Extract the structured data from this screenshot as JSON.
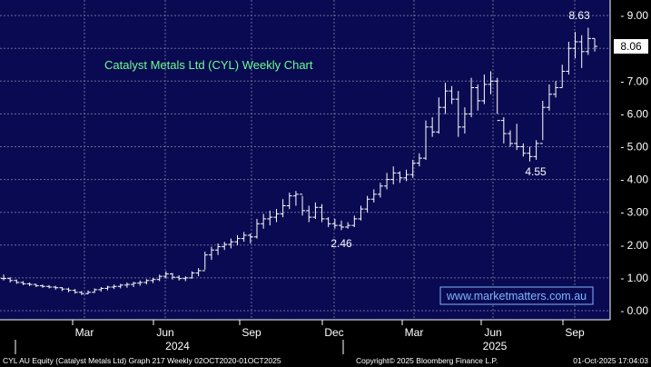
{
  "chart_data": {
    "type": "ohlc",
    "title": "Catalyst Metals Ltd (CYL) Weekly Chart",
    "watermark": "www.marketmatters.com.au",
    "ylim": [
      -0.2,
      9.3
    ],
    "y_ticks": [
      "0.00",
      "1.00",
      "2.00",
      "3.00",
      "4.00",
      "5.00",
      "6.00",
      "7.00",
      "8.00",
      "9.00"
    ],
    "x_ticks": [
      "Mar",
      "Jun",
      "Sep",
      "Dec",
      "Mar",
      "Jun",
      "Sep"
    ],
    "years": [
      "2024",
      "2025"
    ],
    "last_price": "8.06",
    "annotations": [
      "8.63",
      "2.46",
      "4.55"
    ],
    "bars": [
      {
        "h": 1.1,
        "l": 0.92,
        "c": 0.98
      },
      {
        "h": 1.02,
        "l": 0.86,
        "c": 0.92
      },
      {
        "h": 0.95,
        "l": 0.82,
        "c": 0.86
      },
      {
        "h": 0.9,
        "l": 0.78,
        "c": 0.82
      },
      {
        "h": 0.86,
        "l": 0.75,
        "c": 0.8
      },
      {
        "h": 0.82,
        "l": 0.72,
        "c": 0.76
      },
      {
        "h": 0.8,
        "l": 0.7,
        "c": 0.74
      },
      {
        "h": 0.78,
        "l": 0.68,
        "c": 0.72
      },
      {
        "h": 0.76,
        "l": 0.64,
        "c": 0.7
      },
      {
        "h": 0.72,
        "l": 0.6,
        "c": 0.66
      },
      {
        "h": 0.7,
        "l": 0.56,
        "c": 0.62
      },
      {
        "h": 0.66,
        "l": 0.52,
        "c": 0.56
      },
      {
        "h": 0.6,
        "l": 0.48,
        "c": 0.52
      },
      {
        "h": 0.62,
        "l": 0.5,
        "c": 0.56
      },
      {
        "h": 0.68,
        "l": 0.54,
        "c": 0.64
      },
      {
        "h": 0.72,
        "l": 0.58,
        "c": 0.68
      },
      {
        "h": 0.76,
        "l": 0.62,
        "c": 0.72
      },
      {
        "h": 0.8,
        "l": 0.66,
        "c": 0.74
      },
      {
        "h": 0.82,
        "l": 0.68,
        "c": 0.78
      },
      {
        "h": 0.86,
        "l": 0.7,
        "c": 0.8
      },
      {
        "h": 0.88,
        "l": 0.72,
        "c": 0.84
      },
      {
        "h": 0.92,
        "l": 0.76,
        "c": 0.86
      },
      {
        "h": 0.96,
        "l": 0.8,
        "c": 0.92
      },
      {
        "h": 1.0,
        "l": 0.84,
        "c": 0.95
      },
      {
        "h": 1.1,
        "l": 0.9,
        "c": 1.05
      },
      {
        "h": 1.2,
        "l": 0.98,
        "c": 1.12
      },
      {
        "h": 1.15,
        "l": 0.95,
        "c": 1.02
      },
      {
        "h": 1.08,
        "l": 0.92,
        "c": 0.98
      },
      {
        "h": 1.05,
        "l": 0.9,
        "c": 1.0
      },
      {
        "h": 1.2,
        "l": 0.98,
        "c": 1.15
      },
      {
        "h": 1.3,
        "l": 1.05,
        "c": 1.22
      },
      {
        "h": 1.8,
        "l": 1.25,
        "c": 1.7
      },
      {
        "h": 1.95,
        "l": 1.55,
        "c": 1.85
      },
      {
        "h": 2.05,
        "l": 1.7,
        "c": 1.95
      },
      {
        "h": 2.1,
        "l": 1.85,
        "c": 2.02
      },
      {
        "h": 2.2,
        "l": 1.9,
        "c": 2.1
      },
      {
        "h": 2.3,
        "l": 2.0,
        "c": 2.2
      },
      {
        "h": 2.4,
        "l": 2.1,
        "c": 2.3
      },
      {
        "h": 2.35,
        "l": 2.05,
        "c": 2.25
      },
      {
        "h": 2.8,
        "l": 2.2,
        "c": 2.65
      },
      {
        "h": 2.95,
        "l": 2.5,
        "c": 2.8
      },
      {
        "h": 3.05,
        "l": 2.6,
        "c": 2.85
      },
      {
        "h": 3.1,
        "l": 2.7,
        "c": 2.95
      },
      {
        "h": 3.4,
        "l": 2.85,
        "c": 3.2
      },
      {
        "h": 3.6,
        "l": 3.1,
        "c": 3.5
      },
      {
        "h": 3.65,
        "l": 3.2,
        "c": 3.55
      },
      {
        "h": 3.5,
        "l": 2.9,
        "c": 3.05
      },
      {
        "h": 3.2,
        "l": 2.7,
        "c": 2.85
      },
      {
        "h": 3.3,
        "l": 2.8,
        "c": 3.15
      },
      {
        "h": 3.25,
        "l": 2.7,
        "c": 2.8
      },
      {
        "h": 2.85,
        "l": 2.55,
        "c": 2.65
      },
      {
        "h": 2.8,
        "l": 2.5,
        "c": 2.6
      },
      {
        "h": 2.75,
        "l": 2.46,
        "c": 2.55
      },
      {
        "h": 2.7,
        "l": 2.5,
        "c": 2.6
      },
      {
        "h": 2.9,
        "l": 2.55,
        "c": 2.8
      },
      {
        "h": 3.2,
        "l": 2.75,
        "c": 3.1
      },
      {
        "h": 3.5,
        "l": 3.0,
        "c": 3.4
      },
      {
        "h": 3.7,
        "l": 3.3,
        "c": 3.55
      },
      {
        "h": 3.9,
        "l": 3.45,
        "c": 3.8
      },
      {
        "h": 4.2,
        "l": 3.7,
        "c": 4.0
      },
      {
        "h": 4.4,
        "l": 3.85,
        "c": 4.2
      },
      {
        "h": 4.25,
        "l": 3.9,
        "c": 4.05
      },
      {
        "h": 4.3,
        "l": 3.95,
        "c": 4.15
      },
      {
        "h": 4.6,
        "l": 4.05,
        "c": 4.5
      },
      {
        "h": 4.8,
        "l": 4.4,
        "c": 4.65
      },
      {
        "h": 5.8,
        "l": 4.6,
        "c": 5.6
      },
      {
        "h": 5.9,
        "l": 5.3,
        "c": 5.45
      },
      {
        "h": 6.5,
        "l": 5.4,
        "c": 6.2
      },
      {
        "h": 6.95,
        "l": 6.0,
        "c": 6.7
      },
      {
        "h": 6.85,
        "l": 6.3,
        "c": 6.45
      },
      {
        "h": 6.7,
        "l": 5.3,
        "c": 5.6
      },
      {
        "h": 6.2,
        "l": 5.4,
        "c": 6.0
      },
      {
        "h": 7.1,
        "l": 5.9,
        "c": 6.8
      },
      {
        "h": 6.9,
        "l": 6.1,
        "c": 6.4
      },
      {
        "h": 7.2,
        "l": 6.3,
        "c": 6.9
      },
      {
        "h": 7.3,
        "l": 6.6,
        "c": 7.0
      },
      {
        "h": 7.1,
        "l": 6.0,
        "c": 5.8
      },
      {
        "h": 5.9,
        "l": 5.1,
        "c": 5.4
      },
      {
        "h": 5.5,
        "l": 5.0,
        "c": 5.1
      },
      {
        "h": 5.7,
        "l": 4.9,
        "c": 5.0
      },
      {
        "h": 5.1,
        "l": 4.7,
        "c": 4.8
      },
      {
        "h": 5.0,
        "l": 4.55,
        "c": 4.7
      },
      {
        "h": 5.2,
        "l": 4.6,
        "c": 5.1
      },
      {
        "h": 6.4,
        "l": 5.2,
        "c": 6.2
      },
      {
        "h": 6.9,
        "l": 6.1,
        "c": 6.6
      },
      {
        "h": 7.0,
        "l": 6.5,
        "c": 6.8
      },
      {
        "h": 7.5,
        "l": 6.8,
        "c": 7.3
      },
      {
        "h": 8.2,
        "l": 7.2,
        "c": 8.0
      },
      {
        "h": 8.5,
        "l": 7.7,
        "c": 8.2
      },
      {
        "h": 8.4,
        "l": 7.4,
        "c": 7.9
      },
      {
        "h": 8.63,
        "l": 7.8,
        "c": 8.3
      },
      {
        "h": 8.3,
        "l": 7.9,
        "c": 8.06
      }
    ]
  },
  "footer": {
    "left": "CYL AU Equity (Catalyst Metals Ltd) Graph 217  Weekly 02OCT2020-01OCT2025",
    "center": "Copyright© 2025 Bloomberg Finance L.P.",
    "right": "01-Oct-2025 17:04:03"
  },
  "colors": {
    "background": "#0a0a52",
    "grid": "#6a6a9a",
    "bars": "#ffffff",
    "title": "#6cff8c",
    "watermark": "#7ab8ff",
    "price_tag_bg": "#ffffff"
  }
}
